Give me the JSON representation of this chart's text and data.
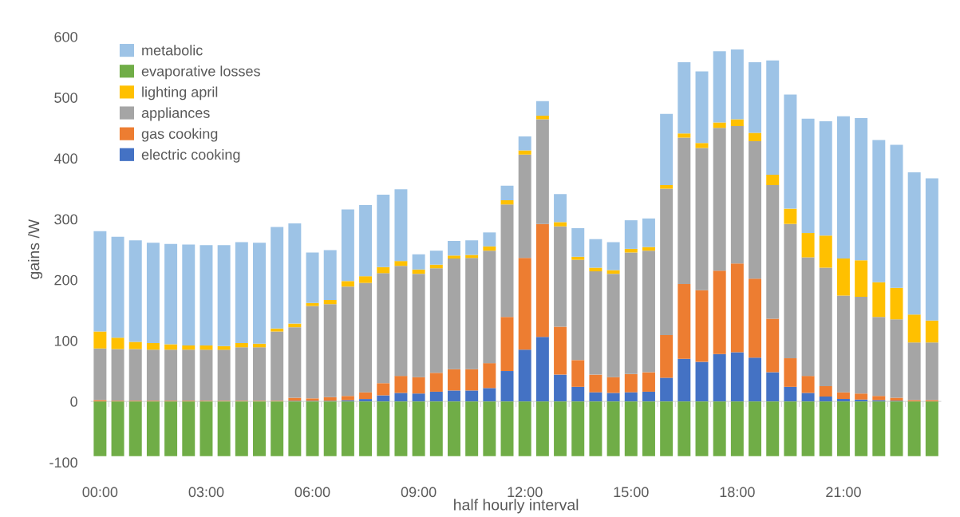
{
  "chart_data": {
    "type": "bar",
    "stacked": true,
    "xlabel": "half hourly interval",
    "ylabel": "gains /W",
    "categories": [
      "00:00",
      null,
      null,
      null,
      null,
      null,
      "03:00",
      null,
      null,
      null,
      null,
      null,
      "06:00",
      null,
      null,
      null,
      null,
      null,
      "09:00",
      null,
      null,
      null,
      null,
      null,
      "12:00",
      null,
      null,
      null,
      null,
      null,
      "15:00",
      null,
      null,
      null,
      null,
      null,
      "18:00",
      null,
      null,
      null,
      null,
      null,
      "21:00",
      null,
      null,
      null,
      null,
      null
    ],
    "series": [
      {
        "name": "electric cooking",
        "color": "#4472c4",
        "values": [
          0,
          0,
          0,
          0,
          0,
          0,
          0,
          0,
          0,
          0,
          0,
          1,
          1,
          1,
          2,
          4,
          10,
          14,
          13,
          16,
          18,
          18,
          22,
          50,
          85,
          106,
          44,
          24,
          15,
          14,
          15,
          16,
          39,
          70,
          65,
          78,
          81,
          72,
          48,
          24,
          14,
          8,
          4,
          3,
          2,
          1,
          0,
          0
        ]
      },
      {
        "name": "gas cooking",
        "color": "#ed7d31",
        "values": [
          2,
          1,
          1,
          1,
          1,
          1,
          1,
          1,
          1,
          1,
          1,
          5,
          4,
          6,
          7,
          11,
          20,
          28,
          27,
          31,
          35,
          35,
          41,
          89,
          151,
          186,
          79,
          44,
          29,
          26,
          30,
          32,
          70,
          123,
          118,
          137,
          146,
          130,
          88,
          47,
          28,
          17,
          11,
          10,
          7,
          5,
          2,
          2
        ]
      },
      {
        "name": "appliances",
        "color": "#a5a5a5",
        "values": [
          85,
          85,
          85,
          84,
          84,
          84,
          84,
          84,
          88,
          88,
          114,
          116,
          152,
          153,
          180,
          180,
          181,
          181,
          170,
          172,
          182,
          183,
          185,
          185,
          170,
          172,
          165,
          165,
          170,
          170,
          200,
          200,
          241,
          241,
          234,
          235,
          226,
          226,
          220,
          221,
          195,
          195,
          159,
          159,
          130,
          129,
          95,
          95
        ]
      },
      {
        "name": "lighting april",
        "color": "#ffc000",
        "values": [
          28,
          19,
          12,
          11,
          9,
          7,
          7,
          6,
          7,
          6,
          5,
          6,
          5,
          7,
          9,
          11,
          10,
          8,
          7,
          6,
          5,
          5,
          7,
          7,
          7,
          6,
          7,
          5,
          6,
          6,
          6,
          6,
          6,
          7,
          8,
          9,
          11,
          14,
          17,
          25,
          40,
          53,
          61,
          60,
          57,
          52,
          46,
          36
        ]
      },
      {
        "name": "evaporative losses",
        "color": "#70ad47",
        "values": [
          -90,
          -90,
          -90,
          -90,
          -90,
          -90,
          -90,
          -90,
          -90,
          -90,
          -90,
          -90,
          -90,
          -90,
          -90,
          -90,
          -90,
          -90,
          -90,
          -90,
          -90,
          -90,
          -90,
          -90,
          -90,
          -90,
          -90,
          -90,
          -90,
          -90,
          -90,
          -90,
          -90,
          -90,
          -90,
          -90,
          -90,
          -90,
          -90,
          -90,
          -90,
          -90,
          -90,
          -90,
          -90,
          -90,
          -90,
          -90
        ]
      },
      {
        "name": "metabolic",
        "color": "#9dc3e6",
        "values": [
          165,
          166,
          167,
          165,
          165,
          166,
          165,
          166,
          166,
          166,
          167,
          165,
          83,
          82,
          118,
          117,
          119,
          118,
          25,
          23,
          24,
          24,
          23,
          24,
          23,
          24,
          46,
          47,
          47,
          46,
          47,
          47,
          117,
          117,
          118,
          117,
          115,
          116,
          188,
          188,
          188,
          188,
          234,
          234,
          234,
          235,
          234,
          234
        ]
      }
    ],
    "ylim": [
      -100,
      600
    ],
    "yticks": [
      -100,
      0,
      100,
      200,
      300,
      400,
      500,
      600
    ],
    "legend": "top left"
  }
}
